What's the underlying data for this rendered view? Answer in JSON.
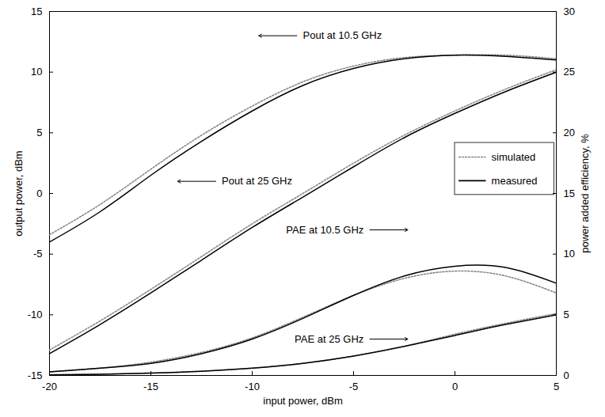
{
  "chart_data": {
    "type": "line",
    "x_label": "input power, dBm",
    "y_label": "output power, dBm",
    "y2_label": "power added efficiency, %",
    "xlim": [
      -20,
      5
    ],
    "xticks": [
      -20,
      -15,
      -10,
      -5,
      0,
      5
    ],
    "ylim": [
      -15,
      15
    ],
    "yticks": [
      -15,
      -10,
      -5,
      0,
      5,
      10,
      15
    ],
    "y2lim": [
      0,
      30
    ],
    "y2ticks": [
      0,
      5,
      10,
      15,
      20,
      25,
      30
    ],
    "legend": "right",
    "x": [
      -20,
      -17.5,
      -15,
      -12.5,
      -10,
      -7.5,
      -5,
      -2.5,
      0,
      2.5,
      5
    ],
    "series": [
      {
        "name": "simulated",
        "color": "#888888",
        "line_style": "dotted",
        "values": [
          -3.4,
          -0.9,
          2.0,
          4.8,
          7.2,
          9.2,
          10.5,
          11.2,
          11.4,
          11.4,
          11.1
        ]
      },
      {
        "name": "measured",
        "color": "#000000",
        "line_style": "solid",
        "values": [
          -4.0,
          -1.5,
          1.5,
          4.3,
          6.8,
          8.9,
          10.3,
          11.1,
          11.4,
          11.3,
          11.0
        ]
      },
      {
        "name": "simulated",
        "color": "#888888",
        "line_style": "dotted",
        "values": [
          -12.9,
          -10.5,
          -7.9,
          -5.2,
          -2.5,
          0.0,
          2.5,
          4.8,
          6.8,
          8.6,
          10.2
        ]
      },
      {
        "name": "measured",
        "color": "#000000",
        "line_style": "solid",
        "values": [
          -13.2,
          -10.8,
          -8.2,
          -5.5,
          -2.8,
          -0.3,
          2.2,
          4.6,
          6.6,
          8.4,
          10.0
        ]
      },
      {
        "name": "simulated",
        "color": "#888888",
        "line_style": "dotted",
        "axis": "y2",
        "values": [
          0.3,
          0.6,
          1.1,
          1.9,
          3.1,
          4.8,
          6.6,
          8.0,
          8.6,
          8.2,
          6.8
        ]
      },
      {
        "name": "measured",
        "color": "#000000",
        "line_style": "solid",
        "axis": "y2",
        "values": [
          0.3,
          0.6,
          1.0,
          1.8,
          3.0,
          4.7,
          6.6,
          8.2,
          9.0,
          8.9,
          7.6
        ]
      },
      {
        "name": "simulated",
        "color": "#888888",
        "line_style": "dotted",
        "axis": "y2",
        "values": [
          0.05,
          0.1,
          0.2,
          0.35,
          0.6,
          1.0,
          1.6,
          2.4,
          3.4,
          4.3,
          5.1
        ]
      },
      {
        "name": "measured",
        "color": "#000000",
        "line_style": "solid",
        "axis": "y2",
        "values": [
          0.05,
          0.1,
          0.2,
          0.35,
          0.6,
          1.0,
          1.6,
          2.4,
          3.3,
          4.2,
          5.0
        ]
      }
    ],
    "annotations": [
      {
        "text": "Pout at 10.5 GHz",
        "x": -7.5,
        "y": 13
      },
      {
        "text": "Pout at 25 GHz",
        "x": -11.5,
        "y": 1
      },
      {
        "text": "PAE at 10.5 GHz",
        "x": -4.5,
        "y": 12,
        "axis": "y2"
      },
      {
        "text": "PAE at 25 GHz",
        "x": -4.5,
        "y": 3,
        "axis": "y2"
      }
    ]
  }
}
